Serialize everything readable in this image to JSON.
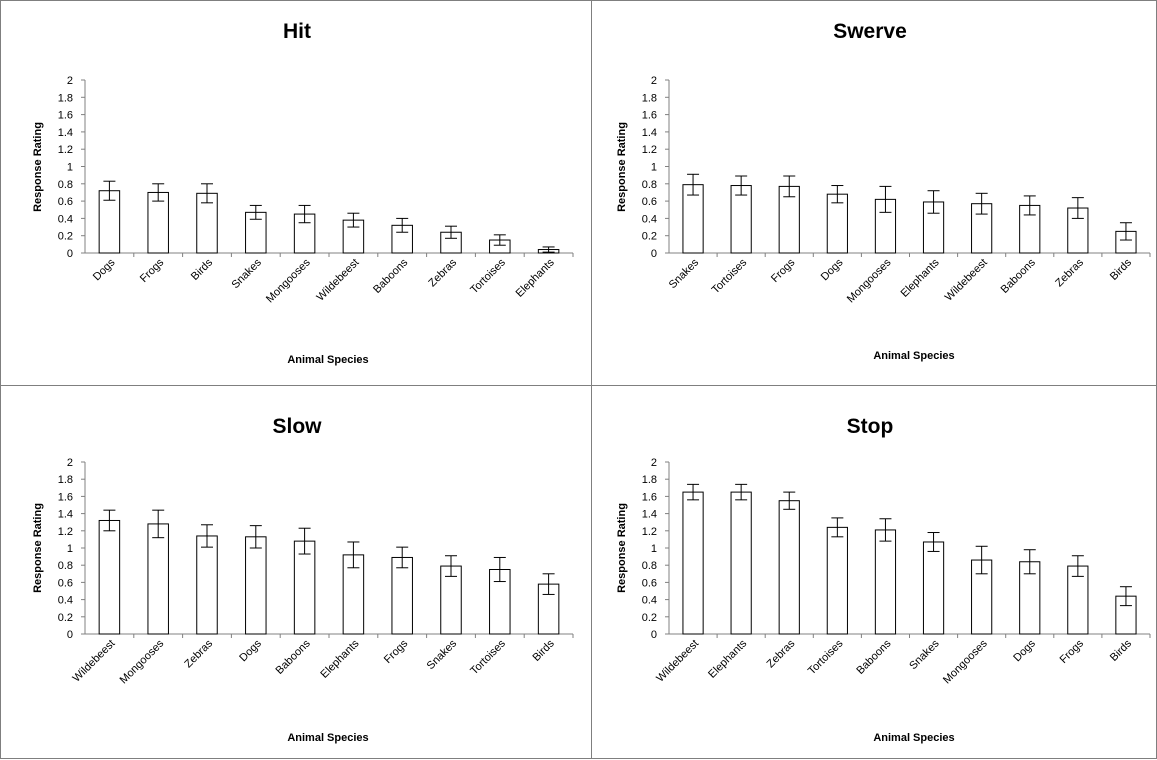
{
  "charts": [
    {
      "type": "bar",
      "title": "Hit",
      "xlabel": "Animal Species",
      "ylabel": "Response Rating",
      "ylim": [
        0,
        2
      ],
      "yticks": [
        "0",
        "0.2",
        "0.4",
        "0.6",
        "0.8",
        "1",
        "1.2",
        "1.4",
        "1.6",
        "1.8",
        "2"
      ],
      "categories": [
        "Dogs",
        "Frogs",
        "Birds",
        "Snakes",
        "Mongooses",
        "Wildebeest",
        "Baboons",
        "Zebras",
        "Tortoises",
        "Elephants"
      ],
      "values": [
        0.72,
        0.7,
        0.69,
        0.47,
        0.45,
        0.38,
        0.32,
        0.24,
        0.15,
        0.04
      ],
      "error": [
        0.11,
        0.1,
        0.11,
        0.08,
        0.1,
        0.08,
        0.08,
        0.07,
        0.06,
        0.03
      ]
    },
    {
      "type": "bar",
      "title": "Swerve",
      "xlabel": "Animal Species",
      "ylabel": "Response Rating",
      "ylim": [
        0,
        2
      ],
      "yticks": [
        "0",
        "0.2",
        "0.4",
        "0.6",
        "0.8",
        "1",
        "1.2",
        "1.4",
        "1.6",
        "1.8",
        "2"
      ],
      "categories": [
        "Snakes",
        "Tortoises",
        "Frogs",
        "Dogs",
        "Mongooses",
        "Elephants",
        "Wildebeest",
        "Baboons",
        "Zebras",
        "Birds"
      ],
      "values": [
        0.79,
        0.78,
        0.77,
        0.68,
        0.62,
        0.59,
        0.57,
        0.55,
        0.52,
        0.25
      ],
      "error": [
        0.12,
        0.11,
        0.12,
        0.1,
        0.15,
        0.13,
        0.12,
        0.11,
        0.12,
        0.1
      ]
    },
    {
      "type": "bar",
      "title": "Slow",
      "xlabel": "Animal Species",
      "ylabel": "Response Rating",
      "ylim": [
        0,
        2
      ],
      "yticks": [
        "0",
        "0.2",
        "0.4",
        "0.6",
        "0.8",
        "1",
        "1.2",
        "1.4",
        "1.6",
        "1.8",
        "2"
      ],
      "categories": [
        "Wildebeest",
        "Mongooses",
        "Zebras",
        "Dogs",
        "Baboons",
        "Elephants",
        "Frogs",
        "Snakes",
        "Tortoises",
        "Birds"
      ],
      "values": [
        1.32,
        1.28,
        1.14,
        1.13,
        1.08,
        0.92,
        0.89,
        0.79,
        0.75,
        0.58
      ],
      "error": [
        0.12,
        0.16,
        0.13,
        0.13,
        0.15,
        0.15,
        0.12,
        0.12,
        0.14,
        0.12
      ]
    },
    {
      "type": "bar",
      "title": "Stop",
      "xlabel": "Animal Species",
      "ylabel": "Response Rating",
      "ylim": [
        0,
        2
      ],
      "yticks": [
        "0",
        "0.2",
        "0.4",
        "0.6",
        "0.8",
        "1",
        "1.2",
        "1.4",
        "1.6",
        "1.8",
        "2"
      ],
      "categories": [
        "Wildebeest",
        "Elephants",
        "Zebras",
        "Tortoises",
        "Baboons",
        "Snakes",
        "Mongooses",
        "Dogs",
        "Frogs",
        "Birds"
      ],
      "values": [
        1.65,
        1.65,
        1.55,
        1.24,
        1.21,
        1.07,
        0.86,
        0.84,
        0.79,
        0.44
      ],
      "error": [
        0.09,
        0.09,
        0.1,
        0.11,
        0.13,
        0.11,
        0.16,
        0.14,
        0.12,
        0.11
      ]
    }
  ],
  "colors": {
    "bar_fill": "#ffffff",
    "bar_stroke": "#000000",
    "axis": "#808080",
    "border": "#7f7f7f"
  }
}
